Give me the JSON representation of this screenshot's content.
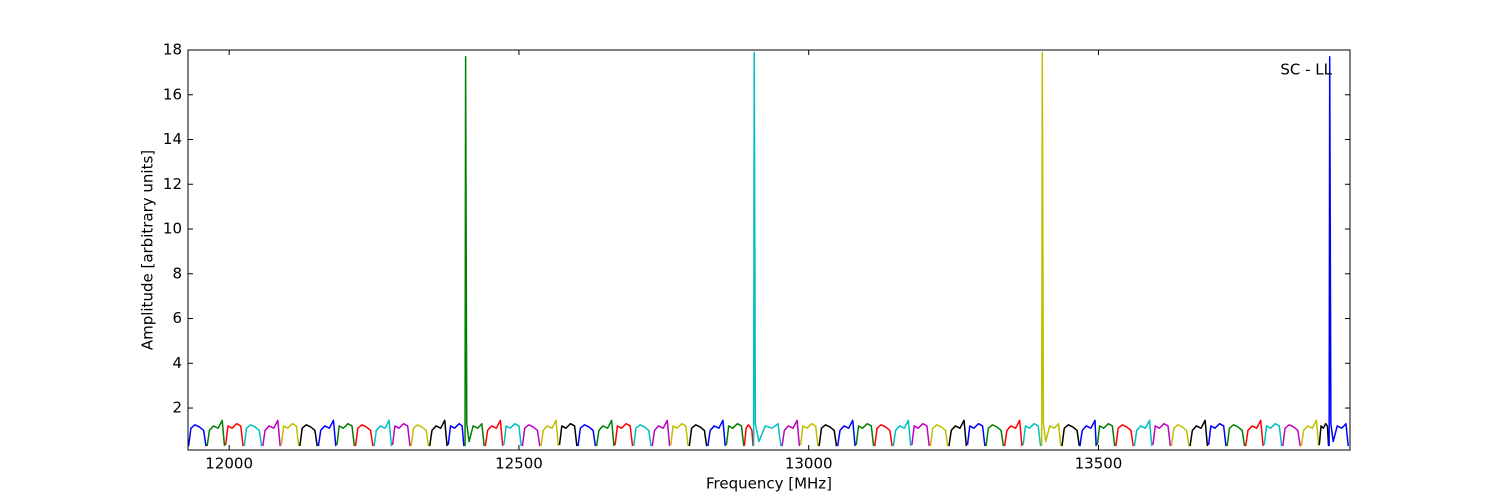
{
  "chart_data": {
    "type": "line",
    "annotations": [
      "SC - LL"
    ],
    "x_label": "Frequency [MHz]",
    "y_label": "Amplitude [arbitrary units]",
    "xlim": [
      11929,
      13934
    ],
    "ylim": [
      0.125,
      18
    ],
    "xticks": [
      12000,
      12500,
      13000,
      13500
    ],
    "yticks": [
      2,
      4,
      6,
      8,
      10,
      12,
      14,
      16,
      18
    ],
    "series": [
      {
        "color": "#0000ff",
        "x": [
          11930,
          11934,
          11941,
          11949,
          11956,
          11960
        ],
        "values": [
          0.3,
          1.1,
          1.25,
          1.15,
          1.0,
          0.3
        ]
      },
      {
        "color": "#008000",
        "x": [
          11962,
          11966,
          11973,
          11981,
          11988,
          11992
        ],
        "values": [
          0.3,
          1.0,
          1.2,
          1.1,
          1.45,
          0.3
        ]
      },
      {
        "color": "#ff0000",
        "x": [
          11994,
          11998,
          12005,
          12013,
          12020,
          12024
        ],
        "values": [
          0.35,
          1.2,
          1.1,
          1.3,
          1.2,
          0.3
        ]
      },
      {
        "color": "#00bfbf",
        "x": [
          12026,
          12030,
          12037,
          12045,
          12052,
          12056
        ],
        "values": [
          0.3,
          1.1,
          1.25,
          1.15,
          1.0,
          0.3
        ]
      },
      {
        "color": "#bf00bf",
        "x": [
          12058,
          12062,
          12069,
          12077,
          12084,
          12088
        ],
        "values": [
          0.3,
          1.0,
          1.2,
          1.1,
          1.45,
          0.3
        ]
      },
      {
        "color": "#bfbf00",
        "x": [
          12090,
          12094,
          12101,
          12109,
          12116,
          12120
        ],
        "values": [
          0.35,
          1.2,
          1.1,
          1.3,
          1.2,
          0.3
        ]
      },
      {
        "color": "#000000",
        "x": [
          12122,
          12126,
          12133,
          12141,
          12148,
          12152
        ],
        "values": [
          0.3,
          1.1,
          1.25,
          1.15,
          1.0,
          0.3
        ]
      },
      {
        "color": "#0000ff",
        "x": [
          12154,
          12158,
          12165,
          12173,
          12180,
          12184
        ],
        "values": [
          0.3,
          1.0,
          1.2,
          1.1,
          1.45,
          0.3
        ]
      },
      {
        "color": "#008000",
        "x": [
          12186,
          12190,
          12197,
          12205,
          12212,
          12216
        ],
        "values": [
          0.35,
          1.2,
          1.1,
          1.3,
          1.2,
          0.3
        ]
      },
      {
        "color": "#ff0000",
        "x": [
          12218,
          12222,
          12229,
          12237,
          12244,
          12248
        ],
        "values": [
          0.3,
          1.1,
          1.25,
          1.15,
          1.0,
          0.3
        ]
      },
      {
        "color": "#00bfbf",
        "x": [
          12250,
          12254,
          12261,
          12269,
          12276,
          12280
        ],
        "values": [
          0.3,
          1.0,
          1.2,
          1.1,
          1.45,
          0.3
        ]
      },
      {
        "color": "#bf00bf",
        "x": [
          12282,
          12286,
          12293,
          12301,
          12308,
          12312
        ],
        "values": [
          0.35,
          1.2,
          1.1,
          1.3,
          1.2,
          0.3
        ]
      },
      {
        "color": "#bfbf00",
        "x": [
          12314,
          12318,
          12325,
          12333,
          12340,
          12344
        ],
        "values": [
          0.3,
          1.1,
          1.25,
          1.15,
          1.0,
          0.3
        ]
      },
      {
        "color": "#000000",
        "x": [
          12346,
          12350,
          12357,
          12365,
          12372,
          12376
        ],
        "values": [
          0.3,
          1.0,
          1.2,
          1.1,
          1.45,
          0.3
        ]
      },
      {
        "color": "#0000ff",
        "x": [
          12378,
          12382,
          12389,
          12397,
          12402,
          12405
        ],
        "values": [
          0.35,
          1.2,
          1.1,
          1.3,
          1.2,
          0.3
        ]
      },
      {
        "color": "#008000",
        "x": [
          12407,
          12408,
          12410,
          12414,
          12421,
          12429,
          12436,
          12440
        ],
        "values": [
          0.3,
          17.7,
          1.3,
          0.5,
          1.2,
          1.1,
          1.3,
          0.3
        ]
      },
      {
        "color": "#ff0000",
        "x": [
          12442,
          12446,
          12453,
          12461,
          12468,
          12472
        ],
        "values": [
          0.3,
          1.0,
          1.2,
          1.1,
          1.45,
          0.3
        ]
      },
      {
        "color": "#00bfbf",
        "x": [
          12474,
          12478,
          12485,
          12493,
          12500,
          12504
        ],
        "values": [
          0.35,
          1.2,
          1.1,
          1.3,
          1.2,
          0.3
        ]
      },
      {
        "color": "#bf00bf",
        "x": [
          12506,
          12510,
          12517,
          12525,
          12532,
          12536
        ],
        "values": [
          0.3,
          1.1,
          1.25,
          1.15,
          1.0,
          0.3
        ]
      },
      {
        "color": "#bfbf00",
        "x": [
          12538,
          12542,
          12549,
          12557,
          12564,
          12568
        ],
        "values": [
          0.3,
          1.0,
          1.2,
          1.1,
          1.45,
          0.3
        ]
      },
      {
        "color": "#000000",
        "x": [
          12570,
          12574,
          12581,
          12589,
          12596,
          12600
        ],
        "values": [
          0.35,
          1.2,
          1.1,
          1.3,
          1.2,
          0.3
        ]
      },
      {
        "color": "#0000ff",
        "x": [
          12602,
          12606,
          12613,
          12621,
          12628,
          12632
        ],
        "values": [
          0.3,
          1.1,
          1.25,
          1.15,
          1.0,
          0.3
        ]
      },
      {
        "color": "#008000",
        "x": [
          12634,
          12638,
          12645,
          12653,
          12660,
          12664
        ],
        "values": [
          0.3,
          1.0,
          1.2,
          1.1,
          1.45,
          0.3
        ]
      },
      {
        "color": "#ff0000",
        "x": [
          12666,
          12670,
          12677,
          12685,
          12692,
          12696
        ],
        "values": [
          0.35,
          1.2,
          1.1,
          1.3,
          1.2,
          0.3
        ]
      },
      {
        "color": "#00bfbf",
        "x": [
          12698,
          12702,
          12709,
          12717,
          12724,
          12728
        ],
        "values": [
          0.3,
          1.1,
          1.25,
          1.15,
          1.0,
          0.3
        ]
      },
      {
        "color": "#bf00bf",
        "x": [
          12730,
          12734,
          12741,
          12749,
          12756,
          12760
        ],
        "values": [
          0.3,
          1.0,
          1.2,
          1.1,
          1.45,
          0.3
        ]
      },
      {
        "color": "#bfbf00",
        "x": [
          12762,
          12766,
          12773,
          12781,
          12788,
          12792
        ],
        "values": [
          0.35,
          1.2,
          1.1,
          1.3,
          1.2,
          0.3
        ]
      },
      {
        "color": "#000000",
        "x": [
          12794,
          12798,
          12805,
          12813,
          12820,
          12824
        ],
        "values": [
          0.3,
          1.1,
          1.25,
          1.15,
          1.0,
          0.3
        ]
      },
      {
        "color": "#0000ff",
        "x": [
          12826,
          12830,
          12837,
          12845,
          12852,
          12856
        ],
        "values": [
          0.3,
          1.0,
          1.2,
          1.1,
          1.45,
          0.3
        ]
      },
      {
        "color": "#008000",
        "x": [
          12858,
          12862,
          12869,
          12877,
          12884,
          12888
        ],
        "values": [
          0.35,
          1.2,
          1.1,
          1.3,
          1.2,
          0.3
        ]
      },
      {
        "color": "#ff0000",
        "x": [
          12889,
          12892,
          12896,
          12899,
          12902,
          12904
        ],
        "values": [
          0.3,
          1.1,
          1.25,
          1.15,
          1.0,
          0.3
        ]
      },
      {
        "color": "#00bfbf",
        "x": [
          12905,
          12906,
          12908,
          12914,
          12925,
          12937,
          12947,
          12952
        ],
        "values": [
          0.3,
          17.9,
          1.3,
          0.5,
          1.2,
          1.1,
          1.3,
          0.3
        ]
      },
      {
        "color": "#bf00bf",
        "x": [
          12954,
          12958,
          12965,
          12973,
          12980,
          12984
        ],
        "values": [
          0.3,
          1.0,
          1.2,
          1.1,
          1.45,
          0.3
        ]
      },
      {
        "color": "#bfbf00",
        "x": [
          12986,
          12990,
          12997,
          13005,
          13012,
          13016
        ],
        "values": [
          0.35,
          1.2,
          1.1,
          1.3,
          1.2,
          0.3
        ]
      },
      {
        "color": "#000000",
        "x": [
          13018,
          13022,
          13029,
          13037,
          13044,
          13048
        ],
        "values": [
          0.3,
          1.1,
          1.25,
          1.15,
          1.0,
          0.3
        ]
      },
      {
        "color": "#0000ff",
        "x": [
          13050,
          13054,
          13061,
          13069,
          13076,
          13080
        ],
        "values": [
          0.3,
          1.0,
          1.2,
          1.1,
          1.45,
          0.3
        ]
      },
      {
        "color": "#008000",
        "x": [
          13082,
          13086,
          13093,
          13101,
          13108,
          13112
        ],
        "values": [
          0.35,
          1.2,
          1.1,
          1.3,
          1.2,
          0.3
        ]
      },
      {
        "color": "#ff0000",
        "x": [
          13114,
          13118,
          13125,
          13133,
          13140,
          13144
        ],
        "values": [
          0.3,
          1.1,
          1.25,
          1.15,
          1.0,
          0.3
        ]
      },
      {
        "color": "#00bfbf",
        "x": [
          13146,
          13150,
          13157,
          13165,
          13172,
          13176
        ],
        "values": [
          0.3,
          1.0,
          1.2,
          1.1,
          1.45,
          0.3
        ]
      },
      {
        "color": "#bf00bf",
        "x": [
          13178,
          13182,
          13189,
          13197,
          13204,
          13208
        ],
        "values": [
          0.35,
          1.2,
          1.1,
          1.3,
          1.2,
          0.3
        ]
      },
      {
        "color": "#bfbf00",
        "x": [
          13210,
          13214,
          13221,
          13229,
          13236,
          13240
        ],
        "values": [
          0.3,
          1.1,
          1.25,
          1.15,
          1.0,
          0.3
        ]
      },
      {
        "color": "#000000",
        "x": [
          13242,
          13246,
          13253,
          13261,
          13268,
          13272
        ],
        "values": [
          0.3,
          1.0,
          1.2,
          1.1,
          1.45,
          0.3
        ]
      },
      {
        "color": "#0000ff",
        "x": [
          13274,
          13278,
          13285,
          13293,
          13300,
          13304
        ],
        "values": [
          0.35,
          1.2,
          1.1,
          1.3,
          1.2,
          0.3
        ]
      },
      {
        "color": "#008000",
        "x": [
          13306,
          13310,
          13317,
          13325,
          13332,
          13336
        ],
        "values": [
          0.3,
          1.1,
          1.25,
          1.15,
          1.0,
          0.3
        ]
      },
      {
        "color": "#ff0000",
        "x": [
          13338,
          13342,
          13349,
          13357,
          13364,
          13368
        ],
        "values": [
          0.3,
          1.0,
          1.2,
          1.1,
          1.45,
          0.3
        ]
      },
      {
        "color": "#00bfbf",
        "x": [
          13370,
          13374,
          13381,
          13389,
          13396,
          13400
        ],
        "values": [
          0.35,
          1.2,
          1.1,
          1.3,
          1.2,
          0.3
        ]
      },
      {
        "color": "#bfbf00",
        "x": [
          13402,
          13403,
          13405,
          13409,
          13416,
          13424,
          13431,
          13435
        ],
        "values": [
          0.3,
          17.9,
          1.3,
          0.5,
          1.2,
          1.1,
          1.3,
          0.3
        ]
      },
      {
        "color": "#000000",
        "x": [
          13437,
          13441,
          13448,
          13456,
          13463,
          13467
        ],
        "values": [
          0.3,
          1.1,
          1.25,
          1.15,
          1.0,
          0.3
        ]
      },
      {
        "color": "#0000ff",
        "x": [
          13468,
          13472,
          13479,
          13487,
          13494,
          13496
        ],
        "values": [
          0.3,
          1.0,
          1.2,
          1.1,
          1.45,
          0.3
        ]
      },
      {
        "color": "#008000",
        "x": [
          13498,
          13502,
          13509,
          13517,
          13524,
          13528
        ],
        "values": [
          0.35,
          1.2,
          1.1,
          1.3,
          1.2,
          0.3
        ]
      },
      {
        "color": "#ff0000",
        "x": [
          13530,
          13534,
          13541,
          13549,
          13556,
          13560
        ],
        "values": [
          0.3,
          1.1,
          1.25,
          1.15,
          1.0,
          0.3
        ]
      },
      {
        "color": "#00bfbf",
        "x": [
          13562,
          13566,
          13573,
          13581,
          13588,
          13592
        ],
        "values": [
          0.3,
          1.0,
          1.2,
          1.1,
          1.45,
          0.3
        ]
      },
      {
        "color": "#bf00bf",
        "x": [
          13594,
          13598,
          13605,
          13613,
          13620,
          13624
        ],
        "values": [
          0.35,
          1.2,
          1.1,
          1.3,
          1.2,
          0.3
        ]
      },
      {
        "color": "#bfbf00",
        "x": [
          13626,
          13630,
          13637,
          13645,
          13652,
          13656
        ],
        "values": [
          0.3,
          1.1,
          1.25,
          1.15,
          1.0,
          0.3
        ]
      },
      {
        "color": "#000000",
        "x": [
          13658,
          13662,
          13669,
          13677,
          13684,
          13688
        ],
        "values": [
          0.3,
          1.0,
          1.2,
          1.1,
          1.45,
          0.3
        ]
      },
      {
        "color": "#0000ff",
        "x": [
          13690,
          13694,
          13701,
          13709,
          13716,
          13720
        ],
        "values": [
          0.35,
          1.2,
          1.1,
          1.3,
          1.2,
          0.3
        ]
      },
      {
        "color": "#008000",
        "x": [
          13722,
          13726,
          13733,
          13741,
          13748,
          13752
        ],
        "values": [
          0.3,
          1.1,
          1.25,
          1.15,
          1.0,
          0.3
        ]
      },
      {
        "color": "#ff0000",
        "x": [
          13754,
          13758,
          13765,
          13773,
          13780,
          13784
        ],
        "values": [
          0.3,
          1.0,
          1.2,
          1.1,
          1.45,
          0.3
        ]
      },
      {
        "color": "#00bfbf",
        "x": [
          13786,
          13790,
          13797,
          13805,
          13812,
          13816
        ],
        "values": [
          0.35,
          1.2,
          1.1,
          1.3,
          1.2,
          0.3
        ]
      },
      {
        "color": "#bf00bf",
        "x": [
          13818,
          13822,
          13829,
          13837,
          13844,
          13848
        ],
        "values": [
          0.3,
          1.1,
          1.25,
          1.15,
          1.0,
          0.3
        ]
      },
      {
        "color": "#bfbf00",
        "x": [
          13850,
          13854,
          13861,
          13869,
          13876,
          13880
        ],
        "values": [
          0.3,
          1.0,
          1.2,
          1.1,
          1.45,
          0.3
        ]
      },
      {
        "color": "#000000",
        "x": [
          13881,
          13884,
          13888,
          13892,
          13895,
          13897
        ],
        "values": [
          0.35,
          1.2,
          1.1,
          1.3,
          1.2,
          0.3
        ]
      },
      {
        "color": "#0000ff",
        "x": [
          13898,
          13899,
          13901,
          13905,
          13912,
          13920,
          13927,
          13931
        ],
        "values": [
          0.3,
          17.7,
          1.3,
          0.5,
          1.2,
          1.1,
          1.3,
          0.3
        ]
      }
    ]
  }
}
